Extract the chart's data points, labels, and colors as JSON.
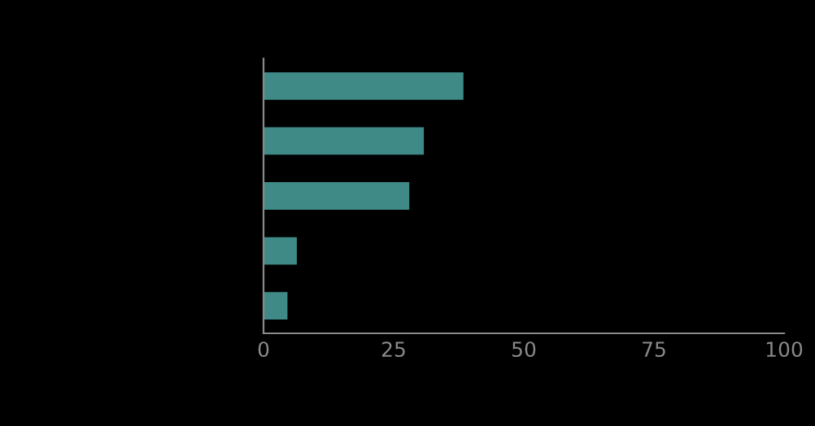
{
  "chart_data": {
    "type": "bar",
    "orientation": "horizontal",
    "categories": [
      null,
      null,
      null,
      null,
      null
    ],
    "values": [
      38.4,
      30.8,
      28.0,
      6.4,
      4.6
    ],
    "color": "#3f8a87",
    "xlim": [
      0,
      100
    ],
    "xticks": [
      0,
      25,
      50,
      75,
      100
    ],
    "tick_labels": "x",
    "grid": false,
    "legend": false
  }
}
